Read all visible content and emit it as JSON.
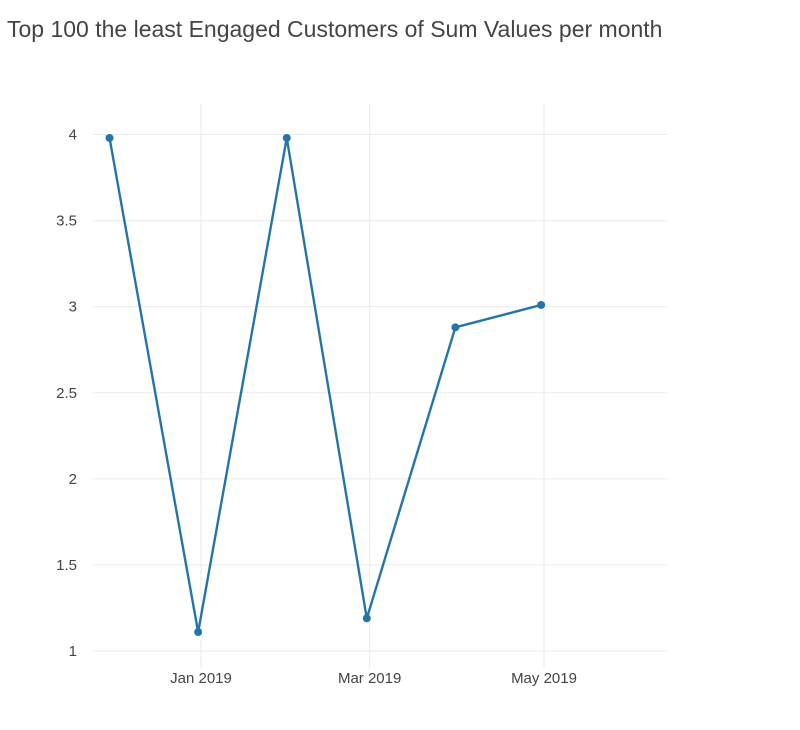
{
  "chart_data": {
    "type": "line",
    "title": "Top 100 the least Engaged Customers of Sum Values per month",
    "xlabel": "",
    "ylabel": "",
    "x_tick_labels": [
      "Jan 2019",
      "Mar 2019",
      "May 2019"
    ],
    "y_tick_labels": [
      "1",
      "1.5",
      "2",
      "2.5",
      "3",
      "3.5",
      "4"
    ],
    "ylim": [
      0.98,
      4.1
    ],
    "series": [
      {
        "name": "Sum Values",
        "color": "#2574a9",
        "x": [
          "2018-11-30",
          "2018-12-31",
          "2019-01-31",
          "2019-02-28",
          "2019-03-31",
          "2019-04-30"
        ],
        "values": [
          3.98,
          1.11,
          3.98,
          1.19,
          2.88,
          3.01
        ]
      }
    ],
    "grid": true,
    "legend": "none"
  }
}
